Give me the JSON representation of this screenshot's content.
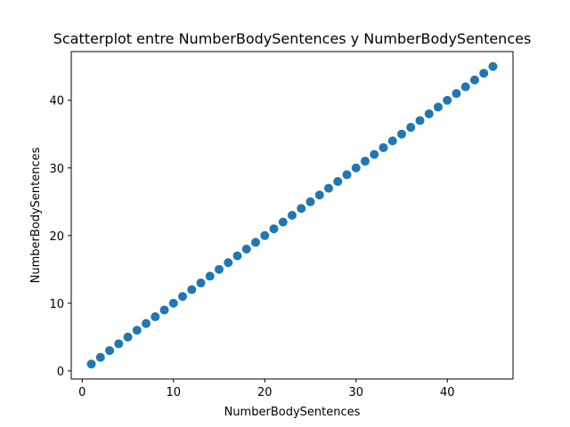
{
  "chart_data": {
    "type": "scatter",
    "title": "Scatterplot entre NumberBodySentences y NumberBodySentences",
    "xlabel": "NumberBodySentences",
    "ylabel": "NumberBodySentences",
    "xlim": [
      -1.2,
      47.2
    ],
    "ylim": [
      -1.2,
      47.2
    ],
    "x_ticks": [
      0,
      10,
      20,
      30,
      40
    ],
    "y_ticks": [
      0,
      10,
      20,
      30,
      40
    ],
    "grid": false,
    "marker_color": "#1f77b4",
    "series": [
      {
        "x": [
          1,
          2,
          3,
          4,
          5,
          6,
          7,
          8,
          9,
          10,
          11,
          12,
          13,
          14,
          15,
          16,
          17,
          18,
          19,
          20,
          21,
          22,
          23,
          24,
          25,
          26,
          27,
          28,
          29,
          30,
          31,
          32,
          33,
          34,
          35,
          36,
          37,
          38,
          39,
          40,
          41,
          42,
          43,
          44,
          45
        ],
        "y": [
          1,
          2,
          3,
          4,
          5,
          6,
          7,
          8,
          9,
          10,
          11,
          12,
          13,
          14,
          15,
          16,
          17,
          18,
          19,
          20,
          21,
          22,
          23,
          24,
          25,
          26,
          27,
          28,
          29,
          30,
          31,
          32,
          33,
          34,
          35,
          36,
          37,
          38,
          39,
          40,
          41,
          42,
          43,
          44,
          45
        ]
      }
    ]
  }
}
